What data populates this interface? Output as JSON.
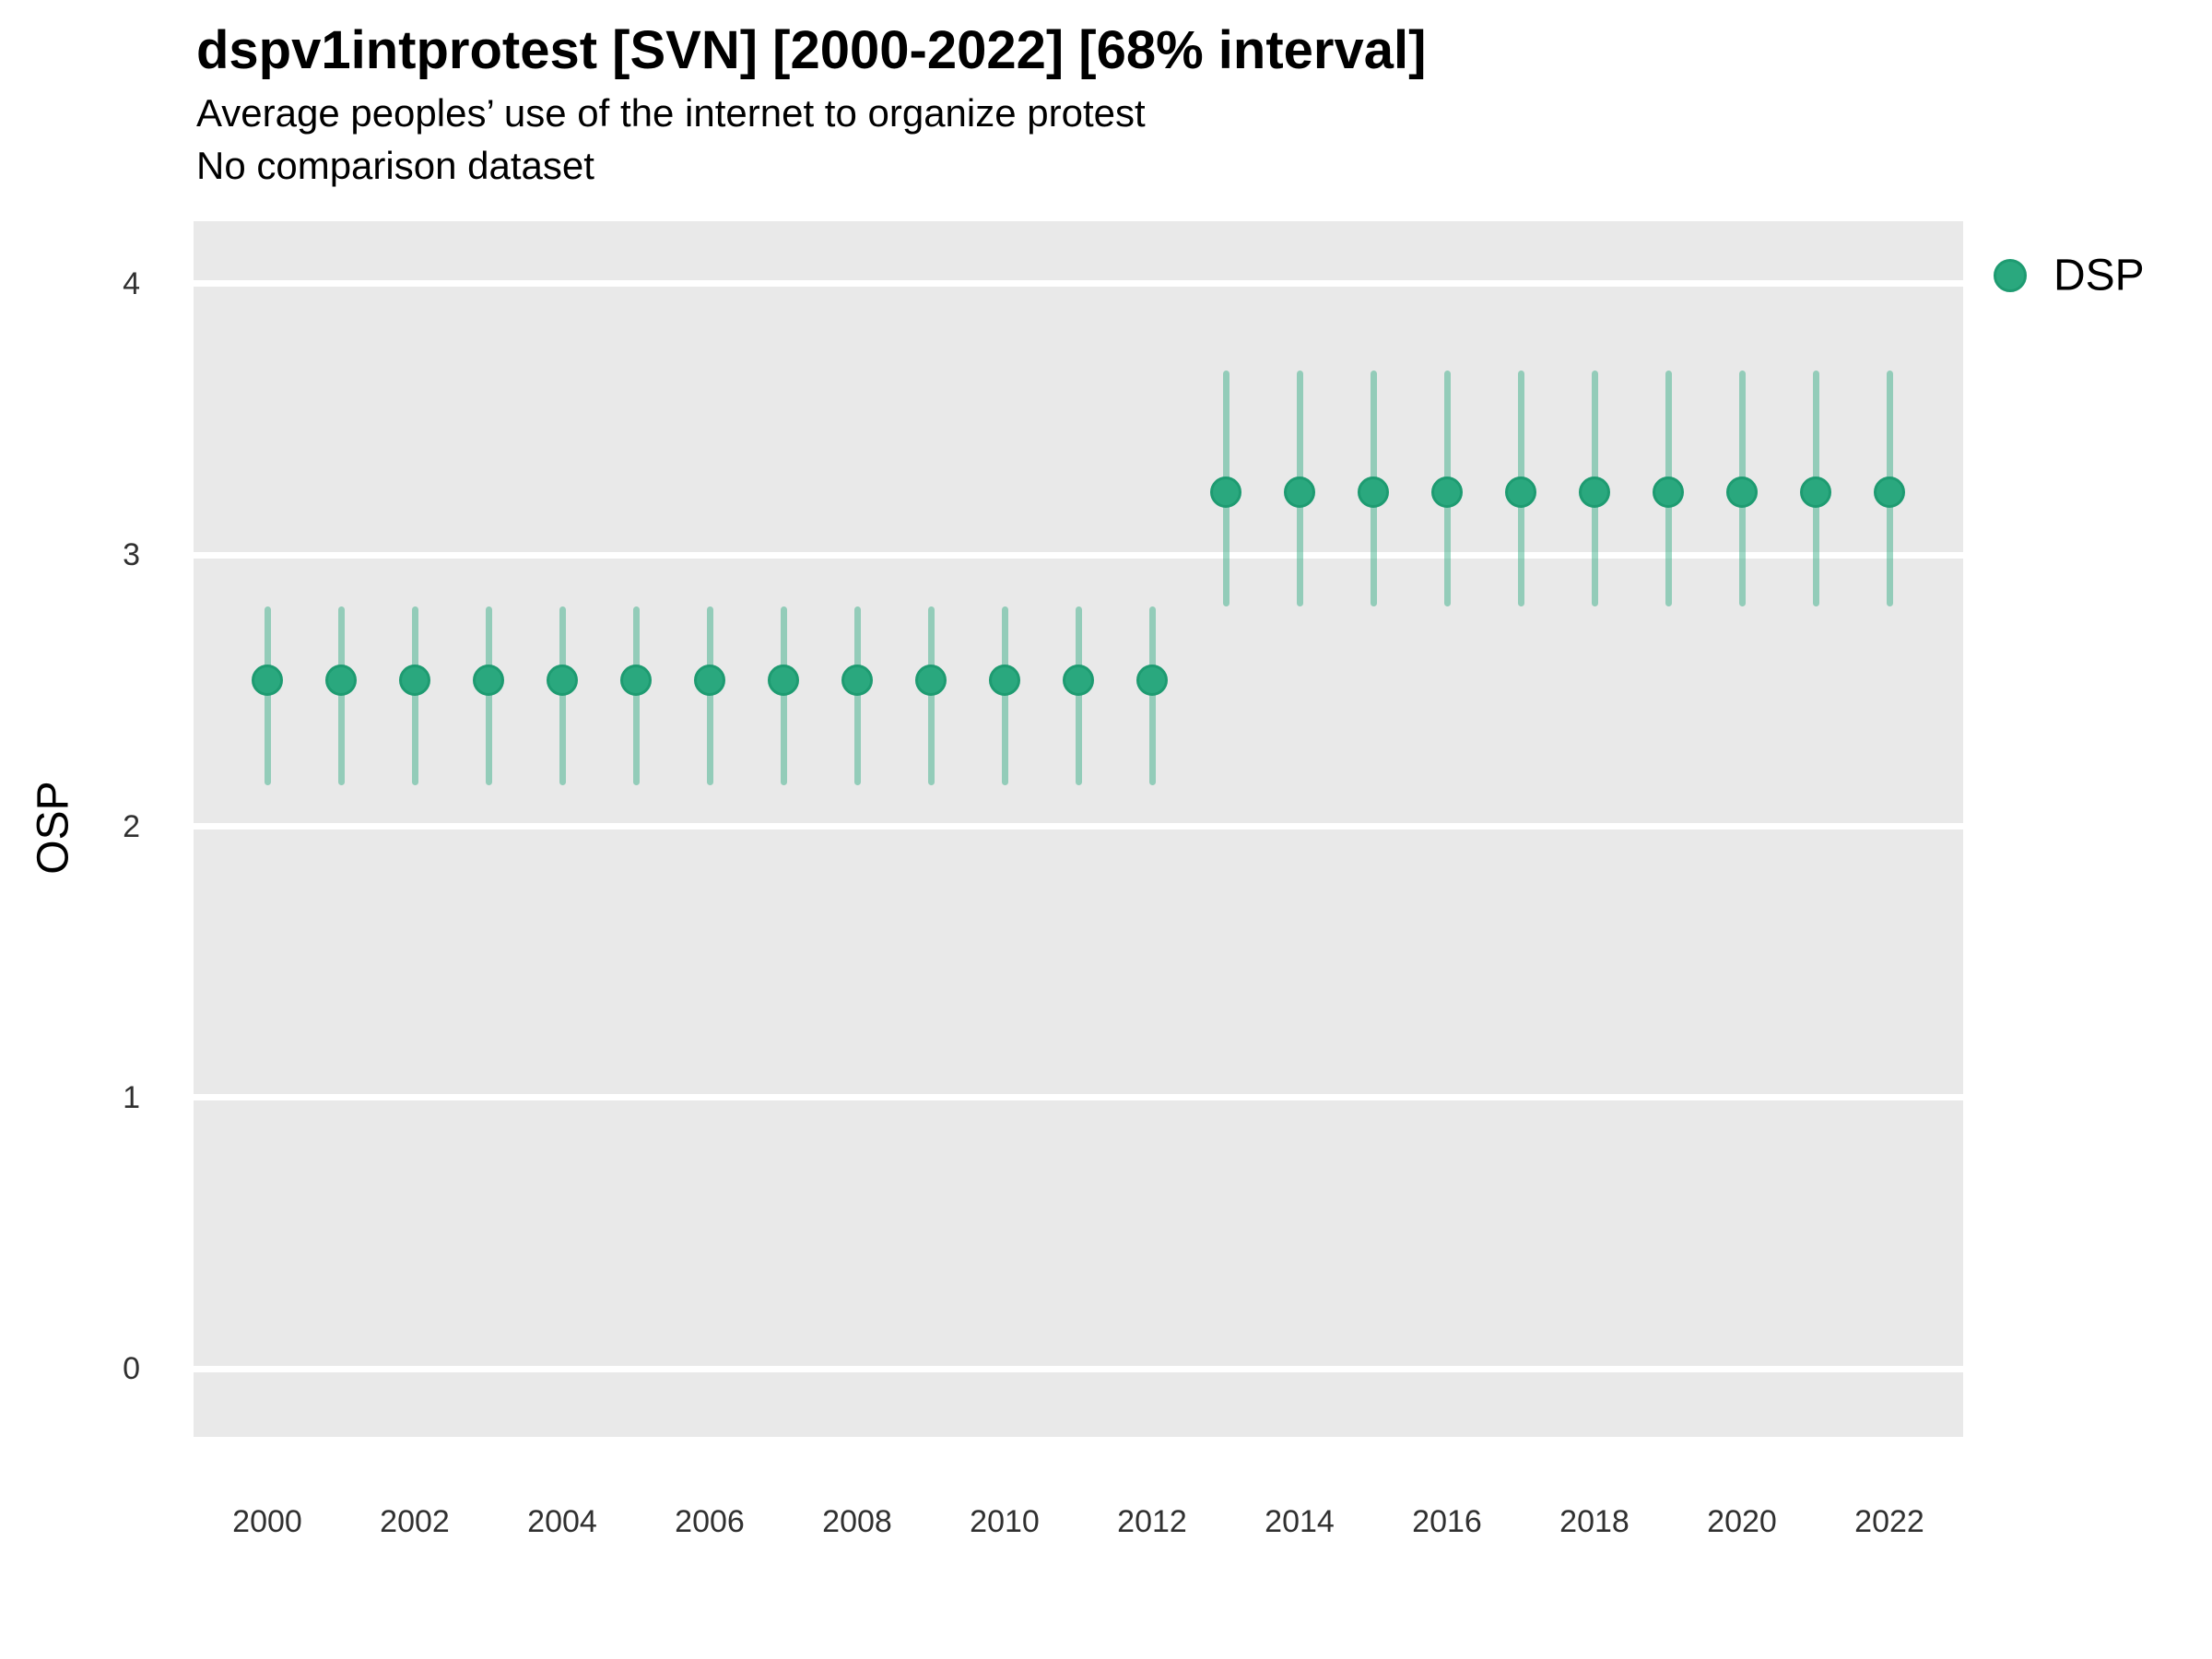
{
  "header": {
    "title": "dspv1intprotest [SVN] [2000-2022] [68% interval]",
    "subtitle": "Average peoples’ use of the internet to organize protest",
    "comparison_note": "No comparison dataset"
  },
  "axes": {
    "y_title": "OSP"
  },
  "legend": {
    "position": "right",
    "items": [
      {
        "label": "DSP",
        "marker": "circle",
        "color": "#2AA87E"
      }
    ]
  },
  "colors": {
    "point_fill": "#2AA87E",
    "point_stroke": "#1E9B71",
    "interval": "rgba(42,168,126,0.45)",
    "panel_bg": "#E9E9E9",
    "gridline": "#FFFFFF",
    "tick_text": "#303030"
  },
  "chart_data": {
    "type": "scatter",
    "subtype": "point-interval",
    "title": "dspv1intprotest [SVN] [2000-2022] [68% interval]",
    "subtitle": "Average peoples’ use of the internet to organize protest",
    "note": "No comparison dataset",
    "interval_level": "68%",
    "xlabel": "",
    "ylabel": "OSP",
    "xlim": [
      1999,
      2023
    ],
    "ylim": [
      -0.25,
      4.23
    ],
    "x_ticks": [
      2000,
      2002,
      2004,
      2006,
      2008,
      2010,
      2012,
      2014,
      2016,
      2018,
      2020,
      2022
    ],
    "y_ticks": [
      0,
      1,
      2,
      3,
      4
    ],
    "grid": "horizontal-major-only",
    "legend_position": "right",
    "series": [
      {
        "name": "DSP",
        "points": [
          {
            "year": 2000,
            "est": 2.54,
            "lo": 2.15,
            "hi": 2.81
          },
          {
            "year": 2001,
            "est": 2.54,
            "lo": 2.15,
            "hi": 2.81
          },
          {
            "year": 2002,
            "est": 2.54,
            "lo": 2.15,
            "hi": 2.81
          },
          {
            "year": 2003,
            "est": 2.54,
            "lo": 2.15,
            "hi": 2.81
          },
          {
            "year": 2004,
            "est": 2.54,
            "lo": 2.15,
            "hi": 2.81
          },
          {
            "year": 2005,
            "est": 2.54,
            "lo": 2.15,
            "hi": 2.81
          },
          {
            "year": 2006,
            "est": 2.54,
            "lo": 2.15,
            "hi": 2.81
          },
          {
            "year": 2007,
            "est": 2.54,
            "lo": 2.15,
            "hi": 2.81
          },
          {
            "year": 2008,
            "est": 2.54,
            "lo": 2.15,
            "hi": 2.81
          },
          {
            "year": 2009,
            "est": 2.54,
            "lo": 2.15,
            "hi": 2.81
          },
          {
            "year": 2010,
            "est": 2.54,
            "lo": 2.15,
            "hi": 2.81
          },
          {
            "year": 2011,
            "est": 2.54,
            "lo": 2.15,
            "hi": 2.81
          },
          {
            "year": 2012,
            "est": 2.54,
            "lo": 2.15,
            "hi": 2.81
          },
          {
            "year": 2013,
            "est": 3.23,
            "lo": 2.81,
            "hi": 3.68
          },
          {
            "year": 2014,
            "est": 3.23,
            "lo": 2.81,
            "hi": 3.68
          },
          {
            "year": 2015,
            "est": 3.23,
            "lo": 2.81,
            "hi": 3.68
          },
          {
            "year": 2016,
            "est": 3.23,
            "lo": 2.81,
            "hi": 3.68
          },
          {
            "year": 2017,
            "est": 3.23,
            "lo": 2.81,
            "hi": 3.68
          },
          {
            "year": 2018,
            "est": 3.23,
            "lo": 2.81,
            "hi": 3.68
          },
          {
            "year": 2019,
            "est": 3.23,
            "lo": 2.81,
            "hi": 3.68
          },
          {
            "year": 2020,
            "est": 3.23,
            "lo": 2.81,
            "hi": 3.68
          },
          {
            "year": 2021,
            "est": 3.23,
            "lo": 2.81,
            "hi": 3.68
          },
          {
            "year": 2022,
            "est": 3.23,
            "lo": 2.81,
            "hi": 3.68
          }
        ]
      }
    ]
  }
}
